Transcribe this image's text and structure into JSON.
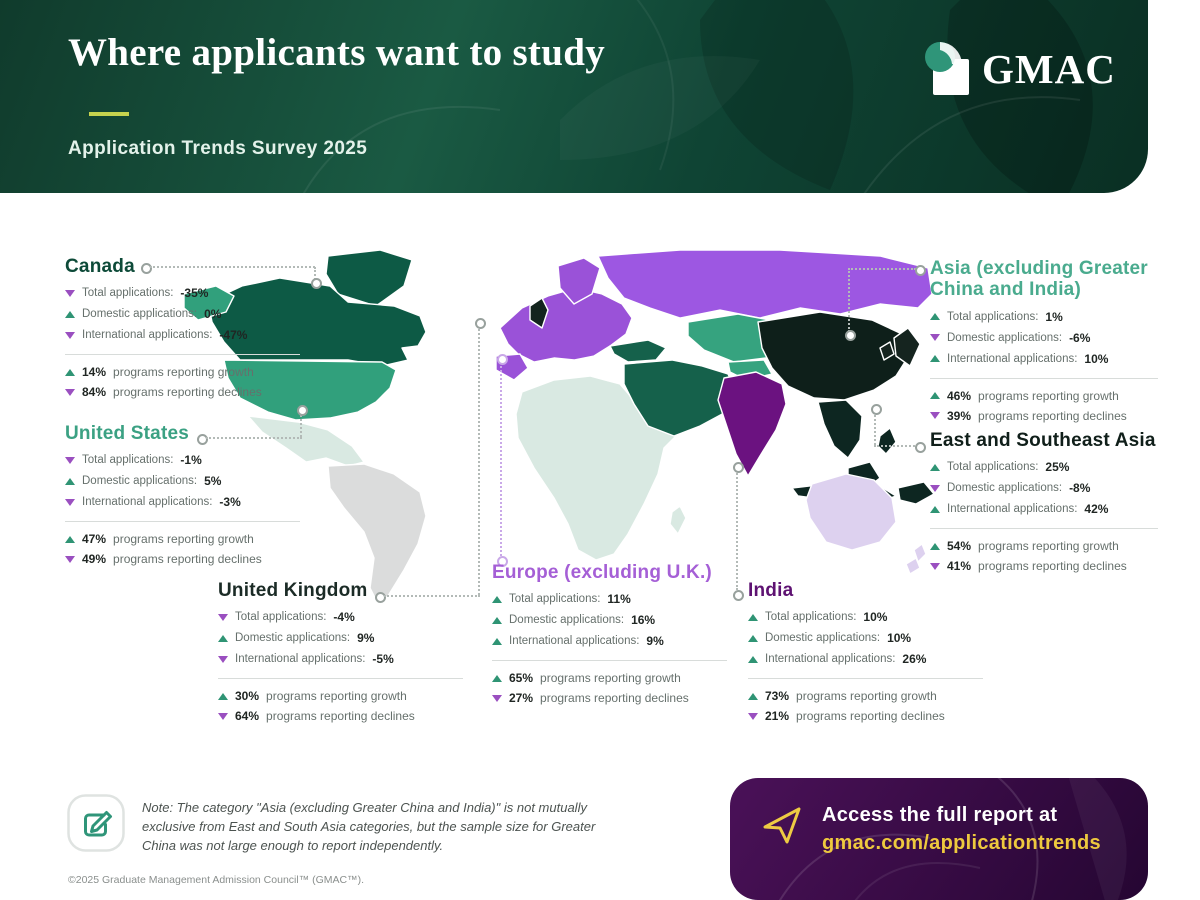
{
  "header": {
    "title": "Where applicants want to study",
    "subtitle": "Application Trends Survey 2025",
    "logo_text": "GMAC",
    "bg_color": "#124434",
    "accent_underline_color": "#c6d24e"
  },
  "colors": {
    "up": "#2f9474",
    "down": "#9a4fc0",
    "label": "#66706c",
    "value": "#202623",
    "divider": "#d8dcda",
    "connector": "#b3bab7",
    "connector_purple": "#c9a8e8"
  },
  "regions": [
    {
      "id": "canada",
      "name": "Canada",
      "accent": "#0d4a38",
      "stats": [
        {
          "label": "Total applications:",
          "value": "-35%",
          "dir": "down"
        },
        {
          "label": "Domestic applications:",
          "value": "0%",
          "dir": "up"
        },
        {
          "label": "International applications:",
          "value": "-47%",
          "dir": "down"
        }
      ],
      "growth": {
        "pct": "14%",
        "dir": "up",
        "text": "programs reporting growth"
      },
      "declines": {
        "pct": "84%",
        "dir": "down",
        "text": "programs reporting declines"
      }
    },
    {
      "id": "united-states",
      "name": "United States",
      "accent": "#3ba183",
      "stats": [
        {
          "label": "Total applications:",
          "value": "-1%",
          "dir": "down"
        },
        {
          "label": "Domestic applications:",
          "value": "5%",
          "dir": "up"
        },
        {
          "label": "International applications:",
          "value": "-3%",
          "dir": "down"
        }
      ],
      "growth": {
        "pct": "47%",
        "dir": "up",
        "text": "programs reporting growth"
      },
      "declines": {
        "pct": "49%",
        "dir": "down",
        "text": "programs reporting declines"
      }
    },
    {
      "id": "united-kingdom",
      "name": "United Kingdom",
      "accent": "#1b2b26",
      "stats": [
        {
          "label": "Total applications:",
          "value": "-4%",
          "dir": "down"
        },
        {
          "label": "Domestic applications:",
          "value": "9%",
          "dir": "up"
        },
        {
          "label": "International applications:",
          "value": "-5%",
          "dir": "down"
        }
      ],
      "growth": {
        "pct": "30%",
        "dir": "up",
        "text": "programs reporting growth"
      },
      "declines": {
        "pct": "64%",
        "dir": "down",
        "text": "programs reporting declines"
      }
    },
    {
      "id": "europe",
      "name": "Europe (excluding U.K.)",
      "accent": "#a55fd6",
      "stats": [
        {
          "label": "Total applications:",
          "value": "11%",
          "dir": "up"
        },
        {
          "label": "Domestic applications:",
          "value": "16%",
          "dir": "up"
        },
        {
          "label": "International applications:",
          "value": "9%",
          "dir": "up"
        }
      ],
      "growth": {
        "pct": "65%",
        "dir": "up",
        "text": "programs reporting growth"
      },
      "declines": {
        "pct": "27%",
        "dir": "down",
        "text": "programs reporting declines"
      }
    },
    {
      "id": "india",
      "name": "India",
      "accent": "#5e1272",
      "stats": [
        {
          "label": "Total applications:",
          "value": "10%",
          "dir": "up"
        },
        {
          "label": "Domestic applications:",
          "value": "10%",
          "dir": "up"
        },
        {
          "label": "International applications:",
          "value": "26%",
          "dir": "up"
        }
      ],
      "growth": {
        "pct": "73%",
        "dir": "up",
        "text": "programs reporting growth"
      },
      "declines": {
        "pct": "21%",
        "dir": "down",
        "text": "programs reporting declines"
      }
    },
    {
      "id": "asia",
      "name": "Asia (excluding Greater China and India)",
      "accent": "#4aab8e",
      "stats": [
        {
          "label": "Total applications:",
          "value": "1%",
          "dir": "up"
        },
        {
          "label": "Domestic applications:",
          "value": "-6%",
          "dir": "down"
        },
        {
          "label": "International applications:",
          "value": "10%",
          "dir": "up"
        }
      ],
      "growth": {
        "pct": "46%",
        "dir": "up",
        "text": "programs reporting growth"
      },
      "declines": {
        "pct": "39%",
        "dir": "down",
        "text": "programs reporting declines"
      }
    },
    {
      "id": "east-southeast-asia",
      "name": "East and Southeast Asia",
      "accent": "#101f1a",
      "stats": [
        {
          "label": "Total applications:",
          "value": "25%",
          "dir": "up"
        },
        {
          "label": "Domestic applications:",
          "value": "-8%",
          "dir": "down"
        },
        {
          "label": "International applications:",
          "value": "42%",
          "dir": "up"
        }
      ],
      "growth": {
        "pct": "54%",
        "dir": "up",
        "text": "programs reporting growth"
      },
      "declines": {
        "pct": "41%",
        "dir": "down",
        "text": "programs reporting declines"
      }
    }
  ],
  "chart_data": {
    "type": "table",
    "title": "Where applicants want to study — Application Trends Survey 2025",
    "categories": [
      "Canada",
      "United States",
      "United Kingdom",
      "Europe (excluding U.K.)",
      "India",
      "Asia (excluding Greater China and India)",
      "East and Southeast Asia"
    ],
    "series": [
      {
        "name": "Total applications %",
        "values": [
          -35,
          -1,
          -4,
          11,
          10,
          1,
          25
        ]
      },
      {
        "name": "Domestic applications %",
        "values": [
          0,
          5,
          9,
          16,
          10,
          -6,
          -8
        ]
      },
      {
        "name": "International applications %",
        "values": [
          -47,
          -3,
          -5,
          9,
          26,
          10,
          42
        ]
      },
      {
        "name": "Programs reporting growth %",
        "values": [
          14,
          47,
          30,
          65,
          73,
          46,
          54
        ]
      },
      {
        "name": "Programs reporting declines %",
        "values": [
          84,
          49,
          64,
          27,
          21,
          39,
          41
        ]
      }
    ]
  },
  "map": {
    "ocean": "#ffffff",
    "region_colors": {
      "canada": "#0d5a45",
      "united_states": "#31a07c",
      "mexico_central_america": "#d9e9e2",
      "south_america": "#dbdcdc",
      "africa": "#d9e9e2",
      "europe": "#9a52d8",
      "united_kingdom": "#13241e",
      "russia": "#9d57e2",
      "central_asia": "#36a37f",
      "middle_east": "#15614b",
      "india": "#6b1280",
      "china": "#0e1f1a",
      "southeast_asia": "#0d2621",
      "japan_korea": "#15241f",
      "australia_nz": "#ddd1ef"
    }
  },
  "note": {
    "text": "Note: The category \"Asia (excluding Greater China and India)\" is not mutually exclusive from East and South Asia categories, but the sample size for Greater China was not large enough to report independently."
  },
  "footer": {
    "copyright": "©2025 Graduate Management Admission Council™ (GMAC™)."
  },
  "cta": {
    "line1": "Access the full report at",
    "line2": "gmac.com/applicationtrends",
    "bg": "#3a0c47",
    "link_color": "#eec93e"
  }
}
